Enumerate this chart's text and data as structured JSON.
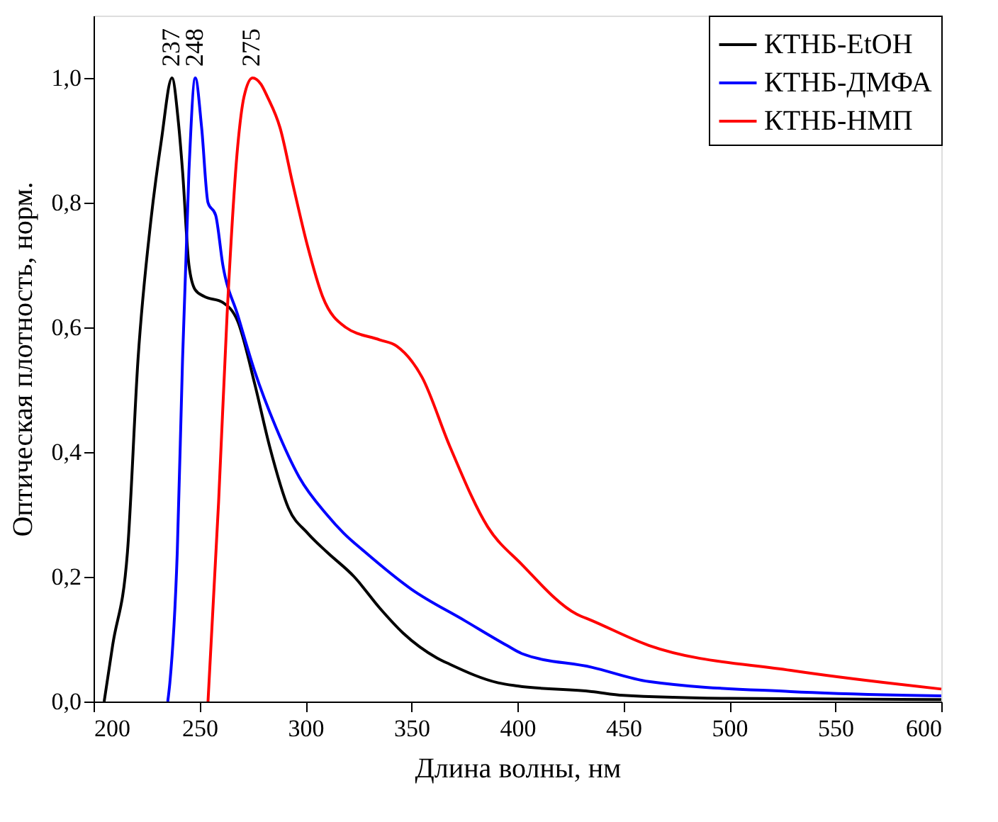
{
  "chart_data": {
    "type": "line",
    "xlabel": "Длина волны, нм",
    "ylabel": "Оптическая плотность, норм.",
    "xlim": [
      200,
      600
    ],
    "xticks": [
      200,
      250,
      300,
      350,
      400,
      450,
      500,
      550,
      600
    ],
    "ylim": [
      0,
      1.1
    ],
    "yticks": [
      {
        "value": 0,
        "label": "0,0"
      },
      {
        "value": 0.2,
        "label": "0,2"
      },
      {
        "value": 0.4,
        "label": "0,4"
      },
      {
        "value": 0.6,
        "label": "0,6"
      },
      {
        "value": 0.8,
        "label": "0,8"
      },
      {
        "value": 1.0,
        "label": "1,0"
      }
    ],
    "grid": false,
    "legend": "top right",
    "marker": "none",
    "line_style": "solid",
    "annotations": [
      {
        "text": "237",
        "x": 237,
        "y": 1.0
      },
      {
        "text": "248",
        "x": 248,
        "y": 1.0
      },
      {
        "text": "275",
        "x": 275,
        "y": 1.0
      }
    ],
    "series": [
      {
        "name": "КТНБ-EtOH",
        "color": "#000000",
        "x": [
          205,
          209,
          216,
          221,
          227,
          232,
          237,
          240,
          242,
          245,
          248,
          252,
          261,
          268,
          276,
          283,
          292,
          301,
          310,
          323,
          335,
          346,
          362,
          368,
          391,
          400,
          435,
          450,
          500,
          600
        ],
        "values": [
          0,
          0.09,
          0.24,
          0.55,
          0.77,
          0.9,
          1.0,
          0.93,
          0.85,
          0.7,
          0.66,
          0.65,
          0.64,
          0.61,
          0.51,
          0.41,
          0.31,
          0.27,
          0.24,
          0.2,
          0.15,
          0.11,
          0.07,
          0.06,
          0.03,
          0.025,
          0.016,
          0.01,
          0.005,
          0.003
        ]
      },
      {
        "name": "КТНБ-ДМФА",
        "color": "#0000ff",
        "x": [
          235,
          236,
          239.5,
          242,
          245,
          248,
          251,
          254,
          257.6,
          261,
          268,
          276,
          286,
          297,
          310,
          318,
          328,
          350,
          375,
          395,
          402,
          435,
          462,
          529,
          600
        ],
        "values": [
          0,
          0.03,
          0.24,
          0.55,
          0.85,
          1.0,
          0.92,
          0.8,
          0.78,
          0.7,
          0.62,
          0.53,
          0.44,
          0.36,
          0.3,
          0.27,
          0.24,
          0.18,
          0.13,
          0.09,
          0.077,
          0.055,
          0.032,
          0.016,
          0.009
        ]
      },
      {
        "name": "КТНБ-НМП",
        "color": "#ff0000",
        "x": [
          254,
          259,
          263,
          268,
          271,
          275,
          279,
          282,
          288,
          294,
          301,
          308,
          319,
          335,
          343,
          355,
          368,
          386,
          402,
          428,
          435,
          462,
          529,
          600
        ],
        "values": [
          0,
          0.32,
          0.62,
          0.89,
          0.97,
          1.0,
          0.99,
          0.97,
          0.92,
          0.83,
          0.73,
          0.65,
          0.6,
          0.58,
          0.57,
          0.52,
          0.41,
          0.28,
          0.22,
          0.14,
          0.13,
          0.09,
          0.05,
          0.02
        ]
      }
    ]
  }
}
